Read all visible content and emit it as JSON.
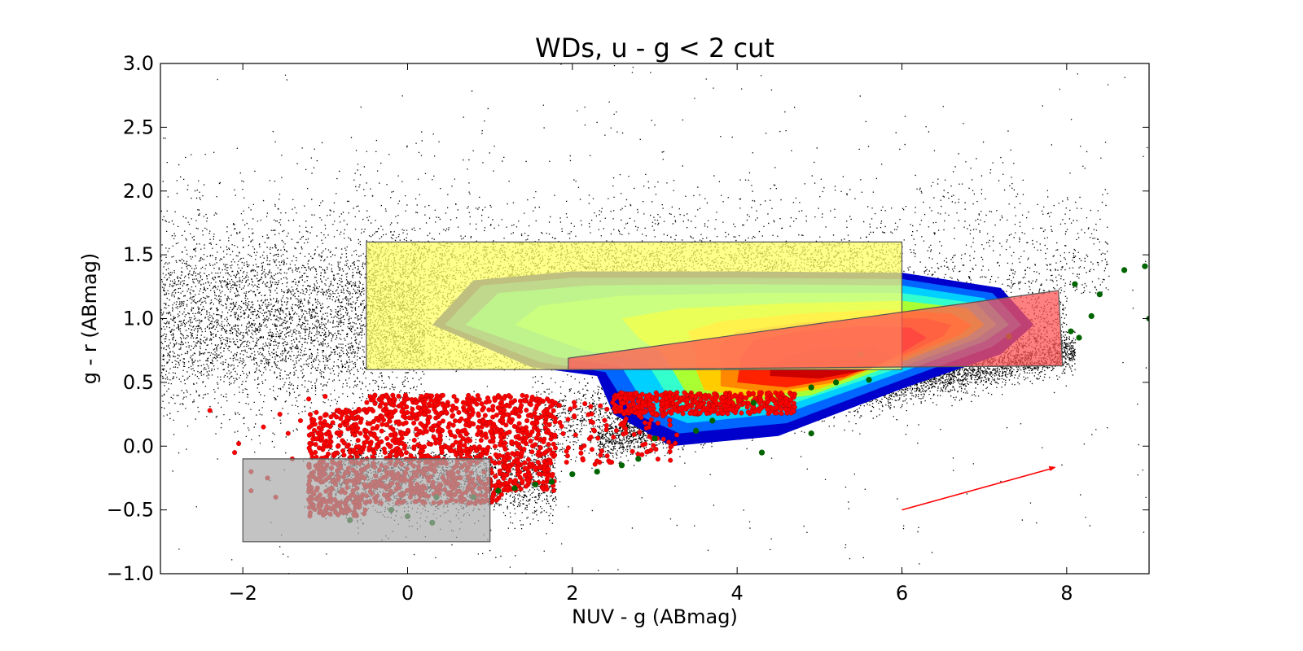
{
  "chart_data": {
    "type": "scatter",
    "title": "WDs, u - g < 2 cut",
    "xlabel": "NUV - g (ABmag)",
    "ylabel": "g - r (ABmag)",
    "xlim": [
      -3,
      9
    ],
    "ylim": [
      -1.0,
      3.0
    ],
    "xticks": [
      -2,
      0,
      2,
      4,
      6,
      8
    ],
    "xtick_labels": [
      "−2",
      "0",
      "2",
      "4",
      "6",
      "8"
    ],
    "yticks": [
      -1.0,
      -0.5,
      0.0,
      0.5,
      1.0,
      1.5,
      2.0,
      2.5,
      3.0
    ],
    "ytick_labels": [
      "−1.0",
      "−0.5",
      "0.0",
      "0.5",
      "1.0",
      "1.5",
      "2.0",
      "2.5",
      "3.0"
    ],
    "grid": false,
    "colors": {
      "background_stars": "#000000",
      "white_dwarfs": "#ff0000",
      "green_points": "#006400",
      "yellow_box": "#ffff66",
      "gray_box": "#a9a9a9",
      "red_box": "#ff5555",
      "arrow": "#ff0000"
    },
    "regions": [
      {
        "id": "yellow",
        "color": "#ffff66",
        "alpha": 0.75,
        "corners": [
          [
            -0.5,
            0.6
          ],
          [
            6.0,
            0.6
          ],
          [
            6.0,
            1.6
          ],
          [
            -0.5,
            1.6
          ]
        ]
      },
      {
        "id": "gray",
        "color": "#a9a9a9",
        "alpha": 0.7,
        "corners": [
          [
            -2.0,
            -0.75
          ],
          [
            1.0,
            -0.75
          ],
          [
            1.0,
            -0.1
          ],
          [
            -2.0,
            -0.1
          ]
        ]
      },
      {
        "id": "red",
        "color": "#ff5555",
        "alpha": 0.75,
        "corners": [
          [
            1.95,
            0.6
          ],
          [
            7.95,
            0.63
          ],
          [
            7.9,
            1.22
          ],
          [
            1.95,
            0.69
          ]
        ]
      }
    ],
    "density_contours": [
      {
        "level": 1,
        "color": "#0000cc",
        "points": [
          [
            2.5,
            0.25
          ],
          [
            3.2,
            0.0
          ],
          [
            4.5,
            0.08
          ],
          [
            6.0,
            0.45
          ],
          [
            7.2,
            0.72
          ],
          [
            7.6,
            0.95
          ],
          [
            7.2,
            1.24
          ],
          [
            6.0,
            1.36
          ],
          [
            4.0,
            1.37
          ],
          [
            2.0,
            1.37
          ],
          [
            0.8,
            1.3
          ],
          [
            0.3,
            0.95
          ],
          [
            1.5,
            0.62
          ],
          [
            2.3,
            0.55
          ]
        ]
      },
      {
        "level": 2,
        "color": "#0066ff",
        "points": [
          [
            2.7,
            0.27
          ],
          [
            3.3,
            0.1
          ],
          [
            4.6,
            0.18
          ],
          [
            6.0,
            0.52
          ],
          [
            7.1,
            0.78
          ],
          [
            7.45,
            0.95
          ],
          [
            7.1,
            1.2
          ],
          [
            6.0,
            1.31
          ],
          [
            4.0,
            1.32
          ],
          [
            2.0,
            1.32
          ],
          [
            0.9,
            1.26
          ],
          [
            0.45,
            0.95
          ],
          [
            1.6,
            0.66
          ],
          [
            2.4,
            0.58
          ]
        ]
      },
      {
        "level": 3,
        "color": "#00d0ff",
        "points": [
          [
            2.9,
            0.3
          ],
          [
            3.4,
            0.18
          ],
          [
            4.6,
            0.26
          ],
          [
            6.0,
            0.58
          ],
          [
            7.0,
            0.82
          ],
          [
            7.3,
            0.95
          ],
          [
            7.0,
            1.16
          ],
          [
            6.0,
            1.26
          ],
          [
            4.0,
            1.27
          ],
          [
            2.2,
            1.26
          ],
          [
            1.1,
            1.2
          ],
          [
            0.7,
            0.95
          ],
          [
            1.8,
            0.7
          ],
          [
            2.6,
            0.62
          ]
        ]
      },
      {
        "level": 4,
        "color": "#33ffcc",
        "points": [
          [
            3.2,
            0.35
          ],
          [
            3.7,
            0.26
          ],
          [
            4.7,
            0.34
          ],
          [
            6.0,
            0.62
          ],
          [
            6.9,
            0.84
          ],
          [
            7.15,
            0.95
          ],
          [
            6.9,
            1.12
          ],
          [
            6.0,
            1.2
          ],
          [
            4.2,
            1.2
          ],
          [
            2.6,
            1.18
          ],
          [
            1.6,
            1.1
          ],
          [
            1.3,
            0.95
          ],
          [
            2.1,
            0.76
          ],
          [
            2.9,
            0.66
          ]
        ]
      },
      {
        "level": 5,
        "color": "#aaff33",
        "points": [
          [
            3.4,
            0.4
          ],
          [
            4.0,
            0.33
          ],
          [
            4.9,
            0.4
          ],
          [
            6.0,
            0.66
          ],
          [
            6.8,
            0.86
          ],
          [
            7.0,
            0.95
          ],
          [
            6.8,
            1.08
          ],
          [
            6.0,
            1.14
          ],
          [
            4.6,
            1.12
          ],
          [
            3.3,
            1.08
          ],
          [
            2.6,
            1.0
          ],
          [
            2.8,
            0.85
          ],
          [
            3.1,
            0.72
          ]
        ]
      },
      {
        "level": 6,
        "color": "#ffcc00",
        "points": [
          [
            3.6,
            0.44
          ],
          [
            4.2,
            0.38
          ],
          [
            5.0,
            0.45
          ],
          [
            6.0,
            0.69
          ],
          [
            6.7,
            0.87
          ],
          [
            6.85,
            0.95
          ],
          [
            6.6,
            1.04
          ],
          [
            5.8,
            1.07
          ],
          [
            4.8,
            1.04
          ],
          [
            3.8,
            0.98
          ],
          [
            3.4,
            0.9
          ],
          [
            3.5,
            0.75
          ],
          [
            3.5,
            0.6
          ]
        ]
      },
      {
        "level": 7,
        "color": "#ff8800",
        "points": [
          [
            3.8,
            0.47
          ],
          [
            4.4,
            0.42
          ],
          [
            5.2,
            0.5
          ],
          [
            6.0,
            0.71
          ],
          [
            6.5,
            0.86
          ],
          [
            6.6,
            0.95
          ],
          [
            6.3,
            1.0
          ],
          [
            5.6,
            1.01
          ],
          [
            4.8,
            0.97
          ],
          [
            4.0,
            0.9
          ],
          [
            3.8,
            0.8
          ],
          [
            3.8,
            0.65
          ]
        ]
      },
      {
        "level": 8,
        "color": "#ff2200",
        "points": [
          [
            4.0,
            0.5
          ],
          [
            4.6,
            0.46
          ],
          [
            5.3,
            0.54
          ],
          [
            6.0,
            0.73
          ],
          [
            6.3,
            0.85
          ],
          [
            6.1,
            0.93
          ],
          [
            5.5,
            0.94
          ],
          [
            4.8,
            0.9
          ],
          [
            4.2,
            0.83
          ],
          [
            4.05,
            0.7
          ]
        ]
      },
      {
        "level": 9,
        "color": "#cc0000",
        "points": [
          [
            4.4,
            0.55
          ],
          [
            5.0,
            0.53
          ],
          [
            5.6,
            0.6
          ],
          [
            5.9,
            0.7
          ],
          [
            5.6,
            0.78
          ],
          [
            5.0,
            0.76
          ],
          [
            4.6,
            0.7
          ],
          [
            4.4,
            0.62
          ]
        ]
      }
    ],
    "series": [
      {
        "name": "",
        "color": "#000000",
        "marker": "dot",
        "note_count": "dense field",
        "points": []
      },
      {
        "name": "",
        "color": "#ff0000",
        "marker": "circle",
        "points": []
      },
      {
        "name": "",
        "color": "#006400",
        "marker": "circle",
        "points": [
          [
            8.1,
            1.27
          ],
          [
            8.4,
            1.19
          ],
          [
            8.7,
            1.38
          ],
          [
            8.95,
            1.41
          ],
          [
            8.3,
            1.02
          ],
          [
            9.0,
            1.0
          ],
          [
            8.05,
            0.9
          ],
          [
            8.15,
            0.85
          ],
          [
            7.3,
            0.86
          ],
          [
            5.5,
            0.72
          ],
          [
            4.9,
            0.46
          ],
          [
            5.2,
            0.5
          ],
          [
            5.6,
            0.52
          ],
          [
            4.2,
            0.34
          ],
          [
            3.7,
            0.2
          ],
          [
            3.5,
            0.12
          ],
          [
            3.0,
            0.06
          ],
          [
            2.8,
            -0.1
          ],
          [
            2.6,
            -0.15
          ],
          [
            2.3,
            -0.2
          ],
          [
            2.0,
            -0.22
          ],
          [
            1.75,
            -0.28
          ],
          [
            1.55,
            -0.3
          ],
          [
            1.3,
            -0.33
          ],
          [
            1.1,
            -0.35
          ],
          [
            0.8,
            -0.4
          ],
          [
            0.35,
            -0.4
          ],
          [
            0.0,
            -0.55
          ],
          [
            -0.2,
            -0.5
          ],
          [
            -0.7,
            -0.58
          ],
          [
            0.3,
            -0.6
          ],
          [
            4.9,
            0.1
          ],
          [
            4.3,
            -0.05
          ]
        ]
      }
    ],
    "arrow": {
      "from": [
        6.0,
        -0.5
      ],
      "to": [
        7.85,
        -0.17
      ]
    }
  }
}
